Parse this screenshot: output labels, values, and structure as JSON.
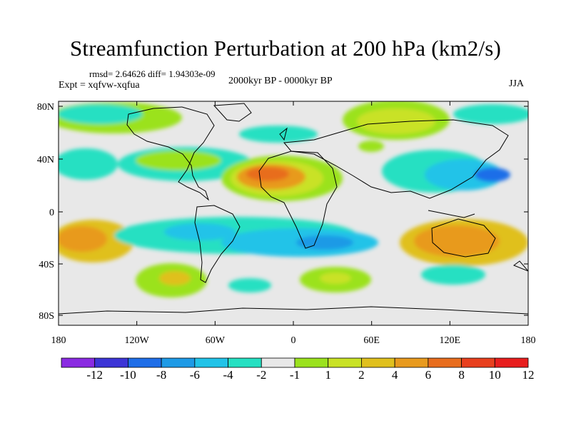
{
  "title": "Streamfunction Perturbation at 200 hPa (km2/s)",
  "stats_line": "rmsd= 2.64626 diff= 1.94303e-09",
  "experiment": "Expt = xqfvw-xqfua",
  "period": "2000kyr BP - 0000kyr BP",
  "season": "JJA",
  "axes": {
    "lat_labels": [
      "80N",
      "40N",
      "0",
      "40S",
      "80S"
    ],
    "lon_labels": [
      "180",
      "120W",
      "60W",
      "0",
      "60E",
      "120E",
      "180"
    ]
  },
  "colorbar": {
    "colors": [
      "#8a2be2",
      "#3d35d6",
      "#1f6ee8",
      "#1e9ae6",
      "#22c3e8",
      "#26e0c2",
      "#e8e8e8",
      "#9be21e",
      "#c9e226",
      "#e0c01e",
      "#e89a1e",
      "#e86d1e",
      "#e8401e",
      "#e81e1e"
    ],
    "labels": [
      "-12",
      "-10",
      "-8",
      "-6",
      "-4",
      "-2",
      "-1",
      "1",
      "2",
      "4",
      "6",
      "8",
      "10",
      "12"
    ]
  }
}
